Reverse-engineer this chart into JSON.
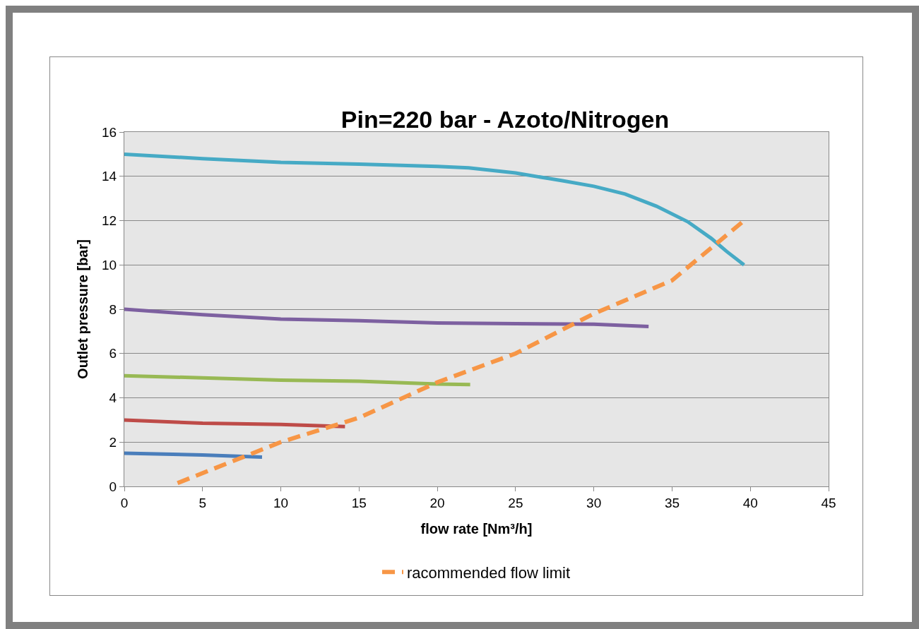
{
  "chart_data": {
    "type": "line",
    "title": "Pin=220 bar - Azoto/Nitrogen",
    "xlabel": "flow rate [Nm³/h]",
    "ylabel": "Outlet pressure [bar]",
    "xlim": [
      0,
      45
    ],
    "xticks": [
      0,
      5,
      10,
      15,
      20,
      25,
      30,
      35,
      40,
      45
    ],
    "ylim": [
      0,
      16
    ],
    "yticks": [
      0,
      2,
      4,
      6,
      8,
      10,
      12,
      14,
      16
    ],
    "grid": "y",
    "legend": "bottom",
    "marker": "none",
    "series": [
      {
        "color": "#4a7ebb",
        "x": [
          0,
          5,
          8.8
        ],
        "values": [
          1.5,
          1.42,
          1.32
        ]
      },
      {
        "color": "#be4b48",
        "x": [
          0,
          5,
          10,
          14.1
        ],
        "values": [
          3.0,
          2.85,
          2.8,
          2.7
        ]
      },
      {
        "color": "#98b954",
        "x": [
          0,
          5,
          10,
          15,
          20,
          22.1
        ],
        "values": [
          5.0,
          4.9,
          4.8,
          4.75,
          4.62,
          4.6
        ]
      },
      {
        "color": "#7d60a0",
        "x": [
          0,
          5,
          10,
          15,
          20,
          25,
          30,
          33.5
        ],
        "values": [
          8.0,
          7.75,
          7.55,
          7.48,
          7.38,
          7.35,
          7.32,
          7.22
        ]
      },
      {
        "color": "#46aac5",
        "x": [
          0,
          5,
          10,
          15,
          20,
          22,
          25,
          28,
          30,
          32,
          34,
          36,
          37.5,
          38.5,
          39.6
        ],
        "values": [
          15.0,
          14.8,
          14.63,
          14.55,
          14.45,
          14.38,
          14.15,
          13.8,
          13.55,
          13.2,
          12.65,
          11.95,
          11.2,
          10.6,
          10.0
        ]
      },
      {
        "name": "racommended flow limit",
        "color": "#f79646",
        "line_style": "dashed",
        "x": [
          3.4,
          10,
          15,
          20,
          25,
          30,
          35,
          39.6
        ],
        "values": [
          0.15,
          2.0,
          3.1,
          4.7,
          6.0,
          7.8,
          9.3,
          12.0
        ]
      }
    ]
  }
}
